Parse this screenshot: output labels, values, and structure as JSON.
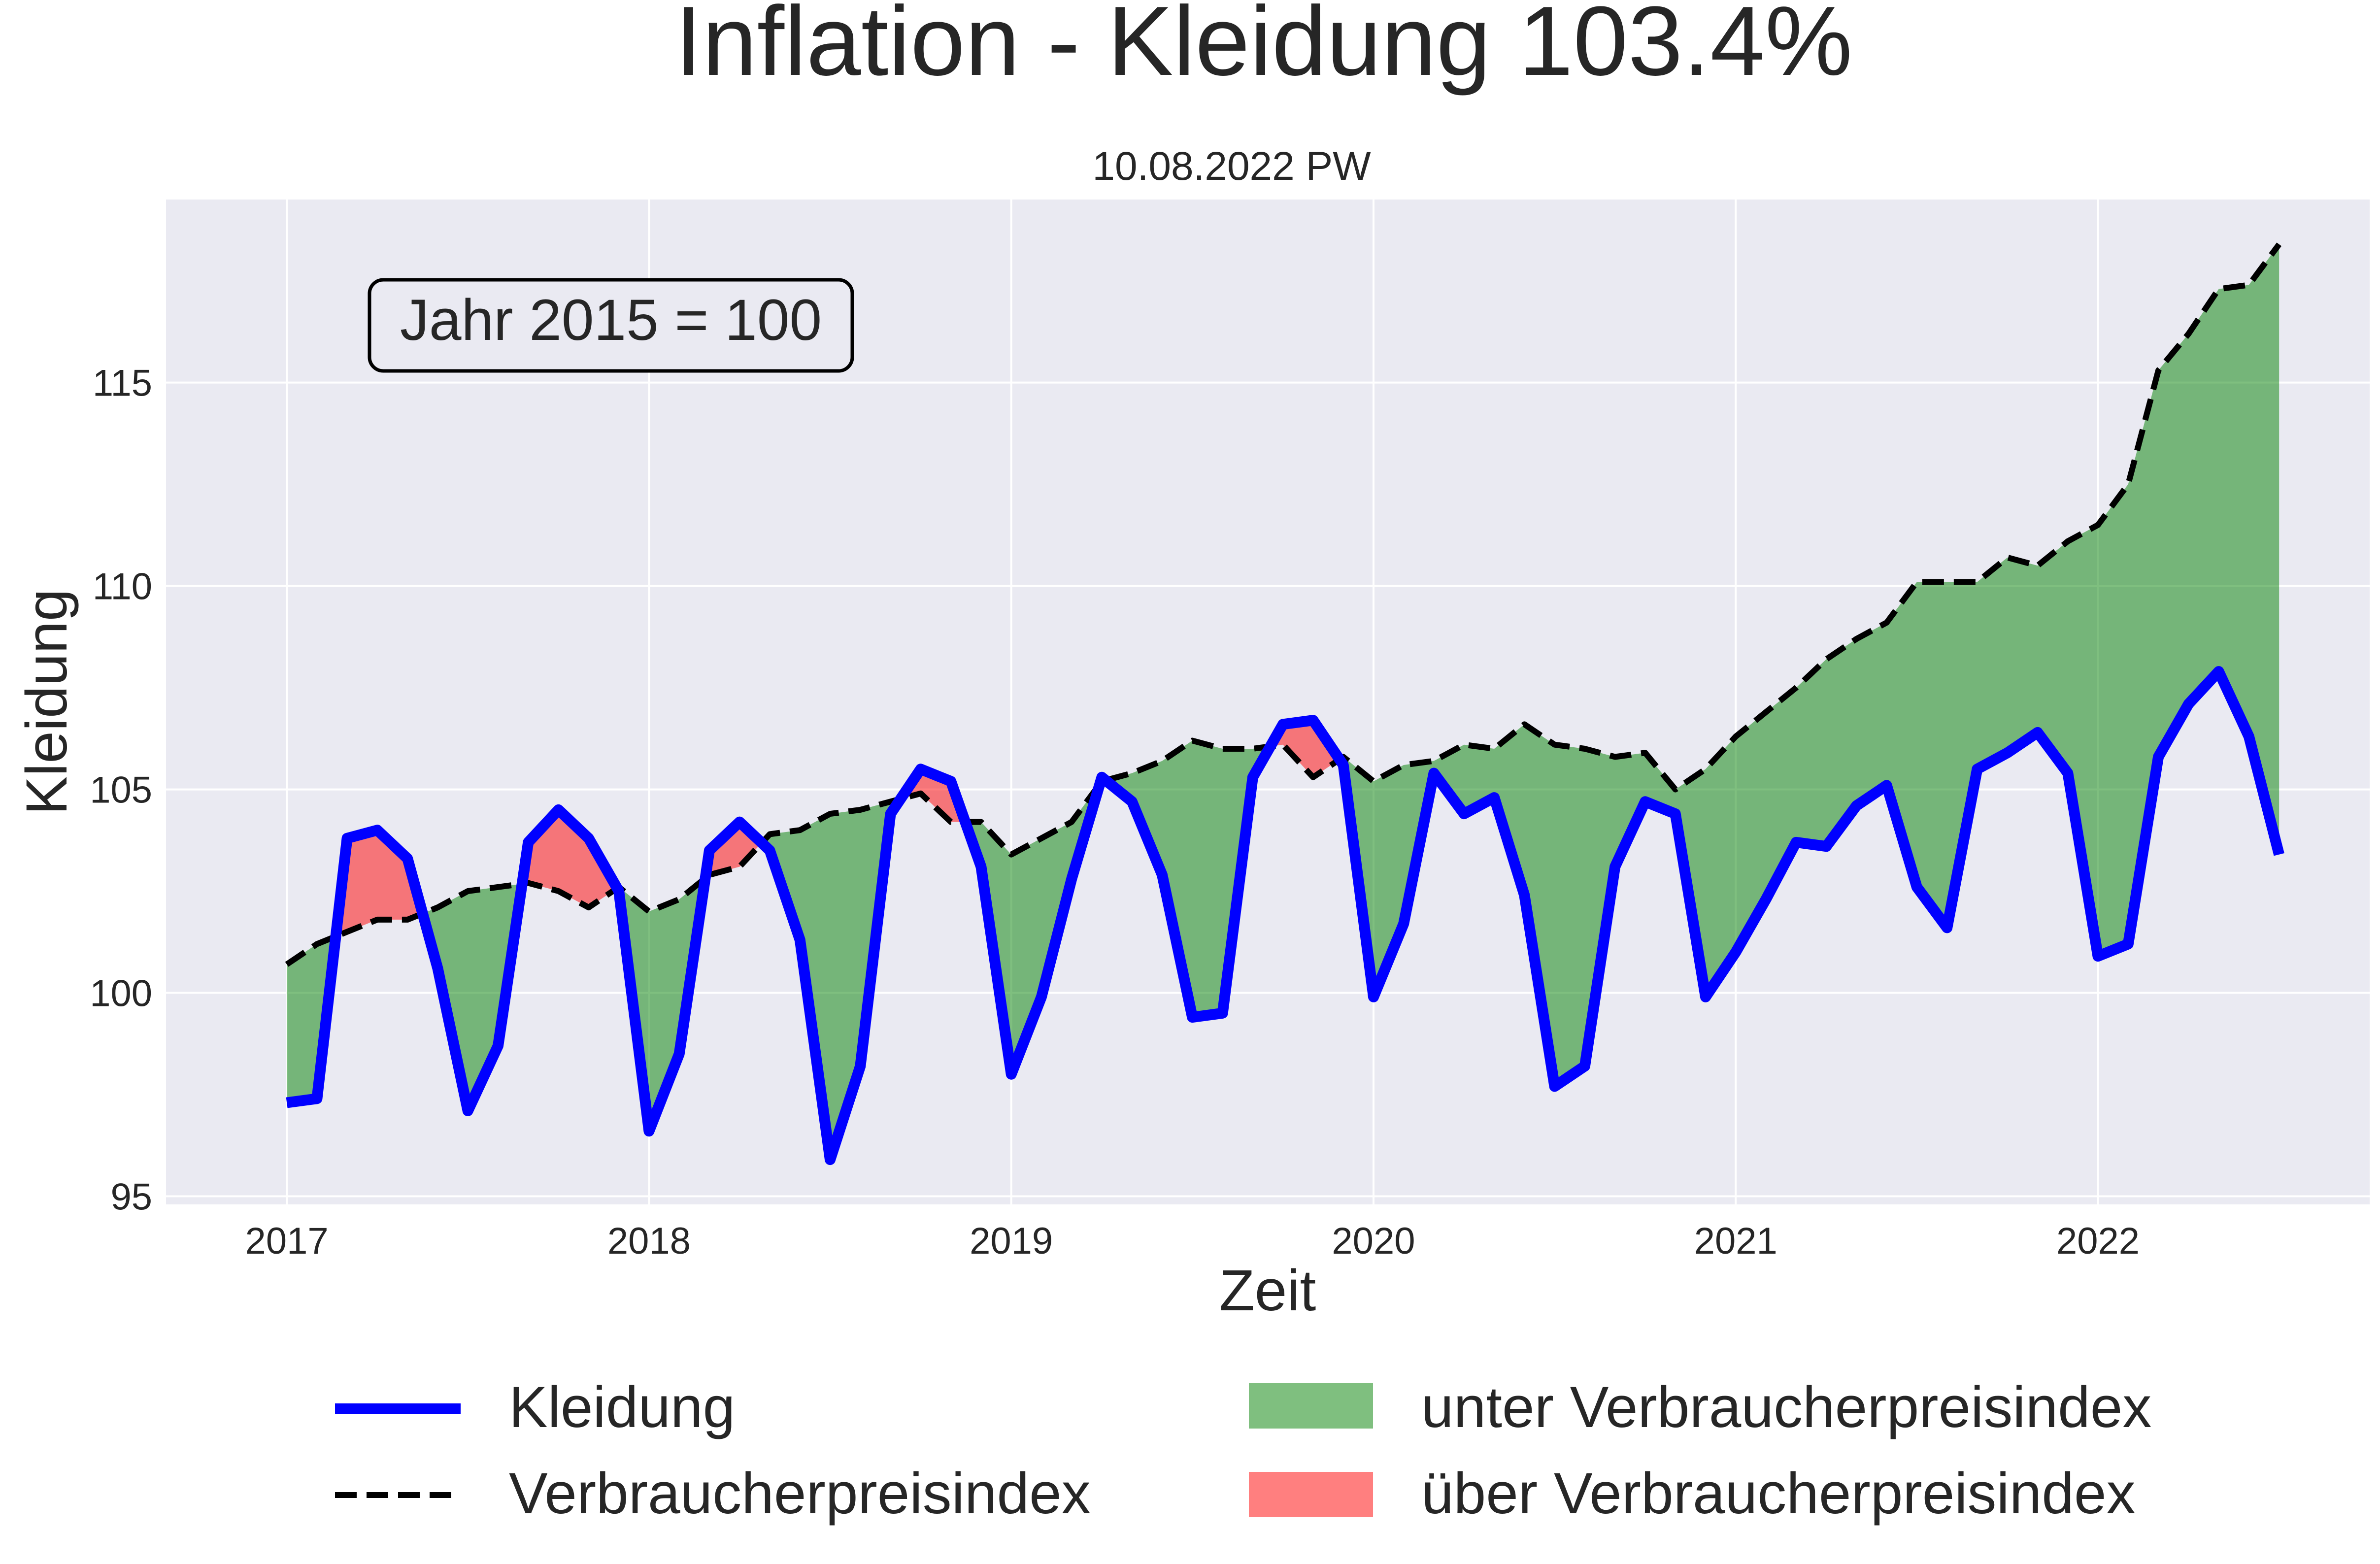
{
  "chart_data": {
    "type": "line",
    "title": "Inflation - Kleidung 103.4%",
    "subtitle": "10.08.2022 PW",
    "annotation": "Jahr 2015 = 100",
    "xlabel": "Zeit",
    "ylabel": "Kleidung",
    "x_ticks": [
      "2017",
      "2018",
      "2019",
      "2020",
      "2021",
      "2022"
    ],
    "y_ticks": [
      95,
      100,
      105,
      110,
      115
    ],
    "xlim": [
      "2016-09",
      "2022-10"
    ],
    "ylim": [
      94.8,
      119.5
    ],
    "grid": true,
    "legend_position": "bottom",
    "x": [
      "2017-01",
      "2017-02",
      "2017-03",
      "2017-04",
      "2017-05",
      "2017-06",
      "2017-07",
      "2017-08",
      "2017-09",
      "2017-10",
      "2017-11",
      "2017-12",
      "2018-01",
      "2018-02",
      "2018-03",
      "2018-04",
      "2018-05",
      "2018-06",
      "2018-07",
      "2018-08",
      "2018-09",
      "2018-10",
      "2018-11",
      "2018-12",
      "2019-01",
      "2019-02",
      "2019-03",
      "2019-04",
      "2019-05",
      "2019-06",
      "2019-07",
      "2019-08",
      "2019-09",
      "2019-10",
      "2019-11",
      "2019-12",
      "2020-01",
      "2020-02",
      "2020-03",
      "2020-04",
      "2020-05",
      "2020-06",
      "2020-07",
      "2020-08",
      "2020-09",
      "2020-10",
      "2020-11",
      "2020-12",
      "2021-01",
      "2021-02",
      "2021-03",
      "2021-04",
      "2021-05",
      "2021-06",
      "2021-07",
      "2021-08",
      "2021-09",
      "2021-10",
      "2021-11",
      "2021-12",
      "2022-01",
      "2022-02",
      "2022-03",
      "2022-04",
      "2022-05",
      "2022-06",
      "2022-07"
    ],
    "series": [
      {
        "name": "Kleidung",
        "color": "#0000ff",
        "style": "solid",
        "values": [
          97.3,
          97.4,
          103.8,
          104.0,
          103.3,
          100.6,
          97.1,
          98.7,
          103.7,
          104.5,
          103.8,
          102.5,
          96.6,
          98.5,
          103.5,
          104.2,
          103.5,
          101.3,
          95.9,
          98.2,
          104.4,
          105.5,
          105.2,
          103.1,
          98.0,
          99.9,
          102.8,
          105.3,
          104.7,
          102.9,
          99.4,
          99.5,
          105.3,
          106.6,
          106.7,
          105.6,
          99.9,
          101.7,
          105.4,
          104.4,
          104.8,
          102.4,
          97.7,
          98.2,
          103.1,
          104.7,
          104.4,
          99.9,
          101.0,
          102.3,
          103.7,
          103.6,
          104.6,
          105.1,
          102.6,
          101.6,
          105.5,
          105.9,
          106.4,
          105.4,
          100.9,
          101.2,
          105.8,
          107.1,
          107.9,
          106.3,
          103.4
        ]
      },
      {
        "name": "Verbraucherpreisindex",
        "color": "#000000",
        "style": "dashed",
        "values": [
          100.7,
          101.2,
          101.5,
          101.8,
          101.8,
          102.1,
          102.5,
          102.6,
          102.7,
          102.5,
          102.1,
          102.6,
          102.0,
          102.3,
          102.9,
          103.1,
          103.9,
          104.0,
          104.4,
          104.5,
          104.7,
          104.9,
          104.2,
          104.2,
          103.4,
          103.8,
          104.2,
          105.2,
          105.4,
          105.7,
          106.2,
          106.0,
          106.0,
          106.1,
          105.3,
          105.8,
          105.2,
          105.6,
          105.7,
          106.1,
          106.0,
          106.6,
          106.1,
          106.0,
          105.8,
          105.9,
          105.0,
          105.5,
          106.3,
          106.9,
          107.5,
          108.2,
          108.7,
          109.1,
          110.1,
          110.1,
          110.1,
          110.7,
          110.5,
          111.1,
          111.5,
          112.5,
          115.3,
          116.2,
          117.3,
          117.4,
          118.4
        ]
      }
    ],
    "fills": [
      {
        "name": "unter Verbraucherpreisindex",
        "color": "#008000",
        "opacity": 0.5
      },
      {
        "name": "über Verbraucherpreisindex",
        "color": "#ff0000",
        "opacity": 0.5
      }
    ],
    "colors": {
      "plot_background": "#eaeaf2",
      "grid": "#ffffff"
    }
  }
}
